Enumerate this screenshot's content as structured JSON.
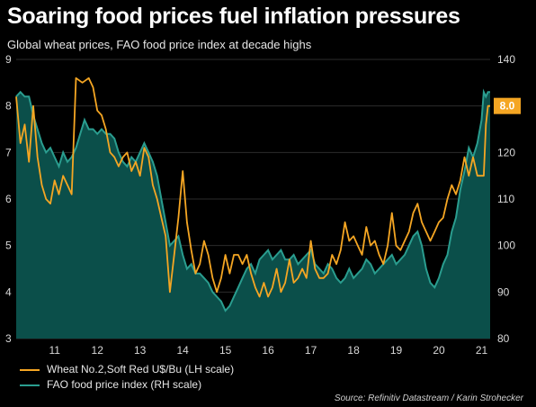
{
  "title": "Soaring food prices fuel inflation pressures",
  "subtitle": "Global wheat prices, FAO food price index at decade highs",
  "source": "Source: Refinitiv Datastream / Karin Strohecker",
  "colors": {
    "wheat": "#f5a623",
    "fao_line": "#2a9d8f",
    "fao_fill": "#0b4f4a",
    "background": "#000000"
  },
  "chart_data": {
    "type": "line",
    "title": "Soaring food prices fuel inflation pressures",
    "subtitle": "Global wheat prices, FAO food price index at decade highs",
    "x_ticks": [
      "11",
      "12",
      "13",
      "14",
      "15",
      "16",
      "17",
      "18",
      "19",
      "20",
      "21"
    ],
    "x_range": [
      2010.6,
      2021.7
    ],
    "left_axis": {
      "range": [
        3,
        9
      ],
      "ticks": [
        "3",
        "4",
        "5",
        "6",
        "7",
        "8",
        "9"
      ]
    },
    "right_axis": {
      "range": [
        80,
        140
      ],
      "ticks": [
        "80",
        "90",
        "100",
        "110",
        "120",
        "130",
        "140"
      ]
    },
    "last_value_label": "8.0",
    "series": [
      {
        "name": "Wheat No.2,Soft Red U$/Bu (LH scale)",
        "axis": "left",
        "style": "line",
        "points": [
          [
            2010.6,
            8.2
          ],
          [
            2010.7,
            7.2
          ],
          [
            2010.8,
            7.6
          ],
          [
            2010.9,
            6.8
          ],
          [
            2011.0,
            8.0
          ],
          [
            2011.1,
            6.9
          ],
          [
            2011.2,
            6.3
          ],
          [
            2011.3,
            6.0
          ],
          [
            2011.4,
            5.9
          ],
          [
            2011.5,
            6.4
          ],
          [
            2011.6,
            6.1
          ],
          [
            2011.7,
            6.5
          ],
          [
            2011.8,
            6.3
          ],
          [
            2011.9,
            6.1
          ],
          [
            2012.0,
            8.6
          ],
          [
            2012.15,
            8.5
          ],
          [
            2012.3,
            8.6
          ],
          [
            2012.4,
            8.4
          ],
          [
            2012.5,
            7.9
          ],
          [
            2012.6,
            7.8
          ],
          [
            2012.7,
            7.5
          ],
          [
            2012.8,
            7.0
          ],
          [
            2012.9,
            6.9
          ],
          [
            2013.0,
            6.7
          ],
          [
            2013.1,
            6.9
          ],
          [
            2013.2,
            7.0
          ],
          [
            2013.3,
            6.6
          ],
          [
            2013.4,
            6.8
          ],
          [
            2013.5,
            6.5
          ],
          [
            2013.6,
            7.1
          ],
          [
            2013.7,
            6.9
          ],
          [
            2013.8,
            6.3
          ],
          [
            2013.9,
            6.0
          ],
          [
            2014.0,
            5.6
          ],
          [
            2014.1,
            5.2
          ],
          [
            2014.2,
            4.0
          ],
          [
            2014.3,
            4.8
          ],
          [
            2014.4,
            5.6
          ],
          [
            2014.5,
            6.6
          ],
          [
            2014.6,
            5.5
          ],
          [
            2014.7,
            4.9
          ],
          [
            2014.8,
            4.4
          ],
          [
            2014.9,
            4.6
          ],
          [
            2015.0,
            5.1
          ],
          [
            2015.1,
            4.8
          ],
          [
            2015.2,
            4.3
          ],
          [
            2015.3,
            4.0
          ],
          [
            2015.4,
            4.3
          ],
          [
            2015.5,
            4.8
          ],
          [
            2015.6,
            4.4
          ],
          [
            2015.7,
            4.8
          ],
          [
            2015.8,
            4.8
          ],
          [
            2015.9,
            4.6
          ],
          [
            2016.0,
            4.8
          ],
          [
            2016.1,
            4.4
          ],
          [
            2016.2,
            4.1
          ],
          [
            2016.3,
            3.9
          ],
          [
            2016.4,
            4.2
          ],
          [
            2016.5,
            3.9
          ],
          [
            2016.6,
            4.1
          ],
          [
            2016.7,
            4.5
          ],
          [
            2016.8,
            4.0
          ],
          [
            2016.9,
            4.2
          ],
          [
            2017.0,
            4.7
          ],
          [
            2017.1,
            4.2
          ],
          [
            2017.2,
            4.3
          ],
          [
            2017.3,
            4.5
          ],
          [
            2017.4,
            4.3
          ],
          [
            2017.5,
            5.1
          ],
          [
            2017.6,
            4.5
          ],
          [
            2017.7,
            4.3
          ],
          [
            2017.8,
            4.3
          ],
          [
            2017.9,
            4.4
          ],
          [
            2018.0,
            4.8
          ],
          [
            2018.1,
            4.6
          ],
          [
            2018.2,
            4.9
          ],
          [
            2018.3,
            5.5
          ],
          [
            2018.4,
            5.1
          ],
          [
            2018.5,
            5.2
          ],
          [
            2018.6,
            5.0
          ],
          [
            2018.7,
            4.8
          ],
          [
            2018.8,
            5.4
          ],
          [
            2018.9,
            5.0
          ],
          [
            2019.0,
            5.1
          ],
          [
            2019.1,
            4.8
          ],
          [
            2019.2,
            4.6
          ],
          [
            2019.3,
            5.0
          ],
          [
            2019.4,
            5.7
          ],
          [
            2019.5,
            5.0
          ],
          [
            2019.6,
            4.9
          ],
          [
            2019.7,
            5.1
          ],
          [
            2019.8,
            5.3
          ],
          [
            2019.9,
            5.7
          ],
          [
            2020.0,
            5.9
          ],
          [
            2020.1,
            5.5
          ],
          [
            2020.2,
            5.3
          ],
          [
            2020.3,
            5.1
          ],
          [
            2020.4,
            5.3
          ],
          [
            2020.5,
            5.5
          ],
          [
            2020.6,
            5.6
          ],
          [
            2020.7,
            6.0
          ],
          [
            2020.8,
            6.3
          ],
          [
            2020.9,
            6.1
          ],
          [
            2021.0,
            6.4
          ],
          [
            2021.1,
            6.9
          ],
          [
            2021.2,
            6.5
          ],
          [
            2021.3,
            6.9
          ],
          [
            2021.4,
            6.5
          ],
          [
            2021.5,
            6.5
          ],
          [
            2021.55,
            6.5
          ],
          [
            2021.6,
            7.6
          ],
          [
            2021.65,
            8.0
          ],
          [
            2021.7,
            8.0
          ]
        ]
      },
      {
        "name": "FAO food price index (RH scale)",
        "axis": "right",
        "style": "area",
        "points": [
          [
            2010.6,
            132
          ],
          [
            2010.7,
            133
          ],
          [
            2010.8,
            132
          ],
          [
            2010.9,
            132
          ],
          [
            2011.0,
            128
          ],
          [
            2011.1,
            125
          ],
          [
            2011.2,
            122
          ],
          [
            2011.3,
            120
          ],
          [
            2011.4,
            121
          ],
          [
            2011.5,
            119
          ],
          [
            2011.6,
            117
          ],
          [
            2011.7,
            120
          ],
          [
            2011.8,
            118
          ],
          [
            2011.9,
            119
          ],
          [
            2012.0,
            121
          ],
          [
            2012.1,
            124
          ],
          [
            2012.2,
            127
          ],
          [
            2012.3,
            125
          ],
          [
            2012.4,
            125
          ],
          [
            2012.5,
            124
          ],
          [
            2012.6,
            125
          ],
          [
            2012.7,
            124
          ],
          [
            2012.8,
            124
          ],
          [
            2012.9,
            123
          ],
          [
            2013.0,
            120
          ],
          [
            2013.1,
            118
          ],
          [
            2013.2,
            117
          ],
          [
            2013.3,
            119
          ],
          [
            2013.4,
            118
          ],
          [
            2013.5,
            120
          ],
          [
            2013.6,
            122
          ],
          [
            2013.7,
            120
          ],
          [
            2013.8,
            118
          ],
          [
            2013.9,
            115
          ],
          [
            2014.0,
            110
          ],
          [
            2014.1,
            105
          ],
          [
            2014.2,
            100
          ],
          [
            2014.3,
            101
          ],
          [
            2014.4,
            102
          ],
          [
            2014.5,
            98
          ],
          [
            2014.6,
            95
          ],
          [
            2014.7,
            96
          ],
          [
            2014.8,
            94
          ],
          [
            2014.9,
            94
          ],
          [
            2015.0,
            93
          ],
          [
            2015.1,
            92
          ],
          [
            2015.2,
            90
          ],
          [
            2015.3,
            89
          ],
          [
            2015.4,
            88
          ],
          [
            2015.5,
            86
          ],
          [
            2015.6,
            87
          ],
          [
            2015.7,
            89
          ],
          [
            2015.8,
            91
          ],
          [
            2015.9,
            93
          ],
          [
            2016.0,
            95
          ],
          [
            2016.1,
            96
          ],
          [
            2016.2,
            94
          ],
          [
            2016.3,
            97
          ],
          [
            2016.4,
            98
          ],
          [
            2016.5,
            99
          ],
          [
            2016.6,
            97
          ],
          [
            2016.7,
            98
          ],
          [
            2016.8,
            99
          ],
          [
            2016.9,
            97
          ],
          [
            2017.0,
            97
          ],
          [
            2017.1,
            98
          ],
          [
            2017.2,
            96
          ],
          [
            2017.3,
            97
          ],
          [
            2017.4,
            98
          ],
          [
            2017.5,
            99
          ],
          [
            2017.6,
            96
          ],
          [
            2017.7,
            95
          ],
          [
            2017.8,
            94
          ],
          [
            2017.9,
            96
          ],
          [
            2018.0,
            95
          ],
          [
            2018.1,
            93
          ],
          [
            2018.2,
            92
          ],
          [
            2018.3,
            93
          ],
          [
            2018.4,
            95
          ],
          [
            2018.5,
            93
          ],
          [
            2018.6,
            94
          ],
          [
            2018.7,
            95
          ],
          [
            2018.8,
            97
          ],
          [
            2018.9,
            96
          ],
          [
            2019.0,
            94
          ],
          [
            2019.1,
            95
          ],
          [
            2019.2,
            96
          ],
          [
            2019.3,
            97
          ],
          [
            2019.4,
            98
          ],
          [
            2019.5,
            96
          ],
          [
            2019.6,
            97
          ],
          [
            2019.7,
            98
          ],
          [
            2019.8,
            100
          ],
          [
            2019.9,
            102
          ],
          [
            2020.0,
            103
          ],
          [
            2020.1,
            100
          ],
          [
            2020.2,
            95
          ],
          [
            2020.3,
            92
          ],
          [
            2020.4,
            91
          ],
          [
            2020.5,
            93
          ],
          [
            2020.6,
            96
          ],
          [
            2020.7,
            98
          ],
          [
            2020.8,
            103
          ],
          [
            2020.9,
            106
          ],
          [
            2021.0,
            112
          ],
          [
            2021.1,
            116
          ],
          [
            2021.2,
            121
          ],
          [
            2021.3,
            119
          ],
          [
            2021.4,
            122
          ],
          [
            2021.5,
            127
          ],
          [
            2021.55,
            133
          ],
          [
            2021.6,
            132
          ],
          [
            2021.65,
            133
          ],
          [
            2021.7,
            133
          ]
        ]
      }
    ]
  }
}
